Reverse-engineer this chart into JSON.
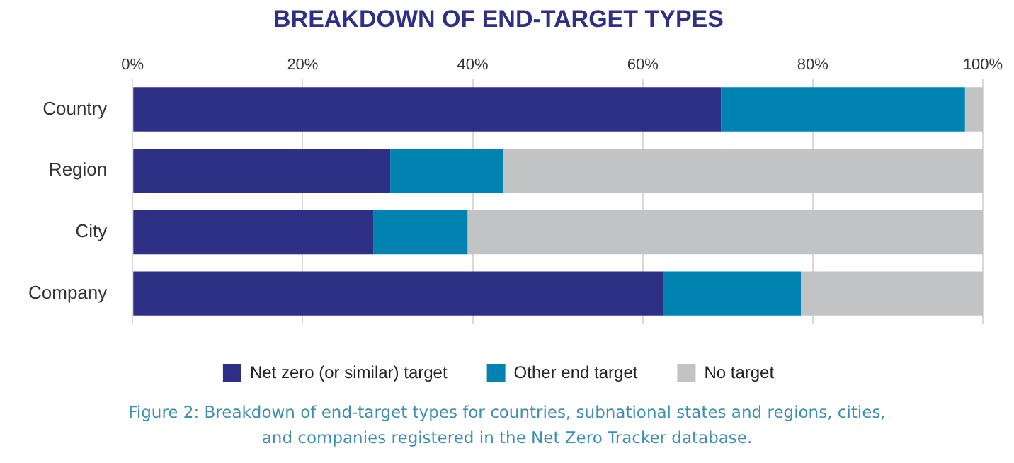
{
  "chart_data": {
    "type": "bar",
    "orientation": "horizontal",
    "stacked": true,
    "title": "BREAKDOWN OF END-TARGET TYPES",
    "categories": [
      "Country",
      "Region",
      "City",
      "Company"
    ],
    "series": [
      {
        "name": "Net zero (or similar) target",
        "color": "#2e3085",
        "values": [
          69.2,
          30.3,
          28.3,
          62.5
        ]
      },
      {
        "name": "Other end target",
        "color": "#0083b0",
        "values": [
          28.7,
          13.3,
          11.1,
          16.1
        ]
      },
      {
        "name": "No target",
        "color": "#c2c3c5",
        "values": [
          2.1,
          56.4,
          60.6,
          21.4
        ]
      }
    ],
    "xlim": [
      0,
      100
    ],
    "xticks": [
      {
        "value": 0,
        "label": "0%"
      },
      {
        "value": 20,
        "label": "20%"
      },
      {
        "value": 40,
        "label": "40%"
      },
      {
        "value": 60,
        "label": "60%"
      },
      {
        "value": 80,
        "label": "80%"
      },
      {
        "value": 100,
        "label": "100%"
      }
    ],
    "grid": "x",
    "legend": "bottom",
    "annotations": [
      "Figure 2: Breakdown of end-target types for countries, subnational states and regions, cities, and companies registered in the Net Zero Tracker database."
    ]
  }
}
